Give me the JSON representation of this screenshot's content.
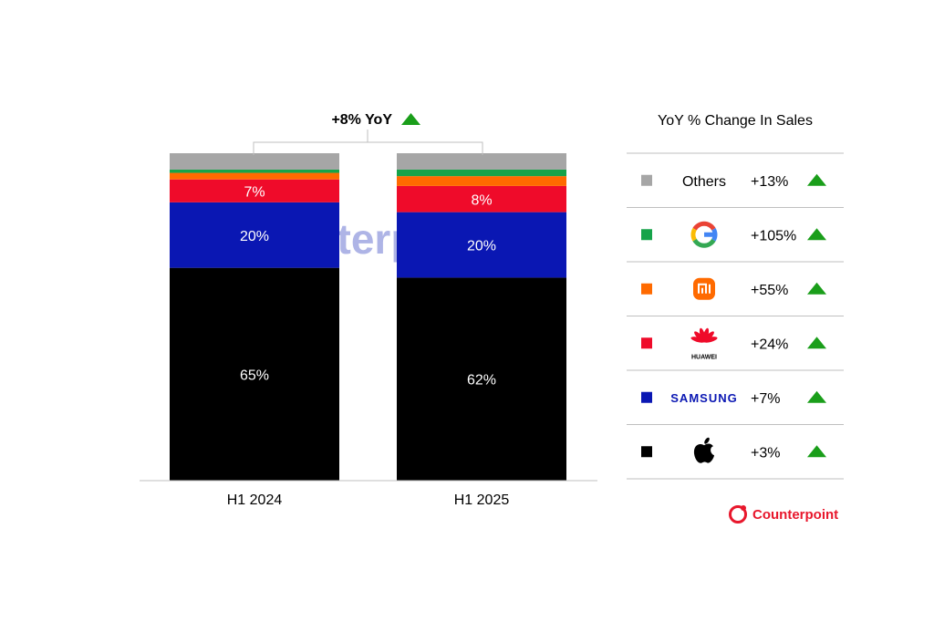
{
  "chart_data": {
    "type": "bar",
    "stacked": true,
    "categories": [
      "H1 2024",
      "H1 2025"
    ],
    "ylim": [
      0,
      100
    ],
    "series": [
      {
        "key": "apple",
        "color": "#000000",
        "values": [
          65,
          62
        ],
        "labels": [
          "65%",
          "62%"
        ]
      },
      {
        "key": "samsung",
        "color": "#0a17b3",
        "values": [
          20,
          20
        ],
        "labels": [
          "20%",
          "20%"
        ]
      },
      {
        "key": "huawei",
        "color": "#ef0b2a",
        "values": [
          7,
          8
        ],
        "labels": [
          "7%",
          "8%"
        ]
      },
      {
        "key": "xiaomi",
        "color": "#ff6a00",
        "values": [
          2,
          3
        ],
        "labels": [
          "",
          ""
        ]
      },
      {
        "key": "google",
        "color": "#16a34a",
        "values": [
          1,
          2
        ],
        "labels": [
          "",
          ""
        ]
      },
      {
        "key": "others",
        "color": "#a6a6a6",
        "values": [
          5,
          5
        ],
        "labels": [
          "",
          ""
        ]
      }
    ],
    "annotation": {
      "text": "+8% YoY",
      "arrow_color": "#1a9e1a"
    },
    "legend": {
      "title": "YoY % Change In Sales",
      "items": [
        {
          "name": "Others",
          "icon": "others-text",
          "color": "#a6a6a6",
          "change": "+13%"
        },
        {
          "name": "",
          "icon": "google-logo-icon",
          "color": "#16a34a",
          "change": "+105%"
        },
        {
          "name": "",
          "icon": "xiaomi-logo-icon",
          "color": "#ff6a00",
          "change": "+55%"
        },
        {
          "name": "HUAWEI",
          "icon": "huawei-logo-icon",
          "color": "#ef0b2a",
          "change": "+24%"
        },
        {
          "name": "SAMSUNG",
          "icon": "samsung-logo-icon",
          "color": "#0a17b3",
          "change": "+7%"
        },
        {
          "name": "",
          "icon": "apple-logo-icon",
          "color": "#000000",
          "change": "+3%"
        }
      ]
    }
  },
  "watermark": "Counterpoint",
  "brand": {
    "name": "Counterpoint",
    "color": "#e8172c"
  }
}
